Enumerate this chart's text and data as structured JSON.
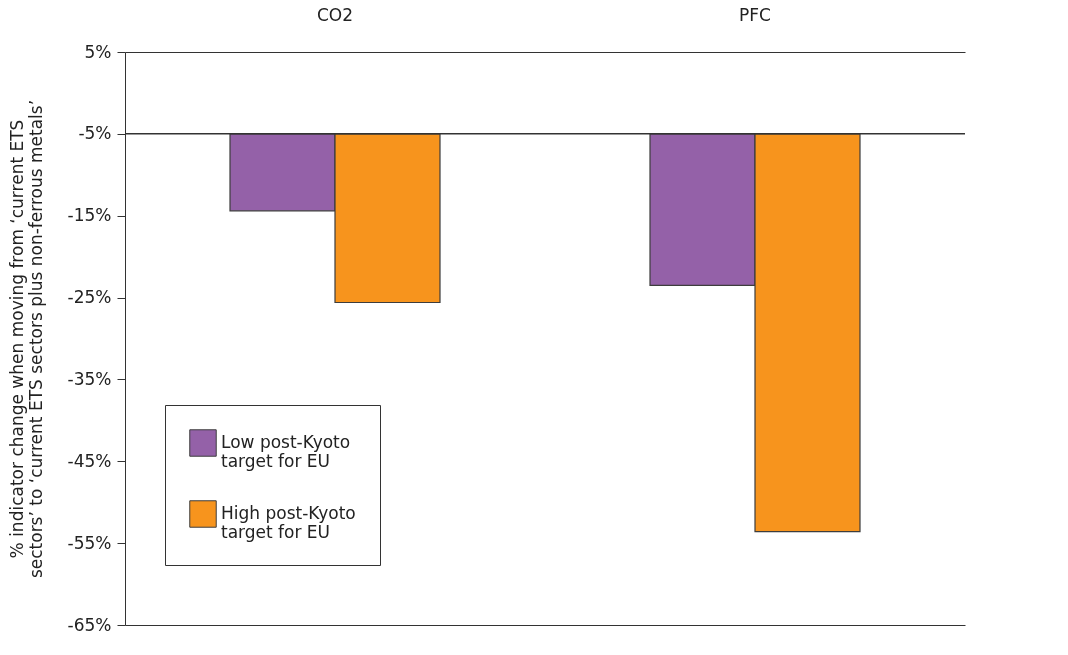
{
  "chart_data": {
    "type": "bar",
    "ylabel": "% indicator change when moving from ‘current ETS sectors’ to ‘current ETS sectors plus non-ferrous metals’",
    "categories": [
      "CO2",
      "PFC"
    ],
    "series": [
      {
        "name": "Low post-Kyoto target for EU",
        "color": "#9461a8",
        "base": [
          -5,
          -5
        ],
        "values": [
          -9.4,
          -18.5
        ]
      },
      {
        "name": "High post-Kyoto target for EU",
        "color": "#f7941d",
        "base": [
          -5,
          -5
        ],
        "values": [
          -20.6,
          -48.6
        ]
      }
    ],
    "ylim": [
      -65,
      5
    ],
    "yticks": [
      {
        "value": 5,
        "label": "5%"
      },
      {
        "value": -5,
        "label": "-5%"
      },
      {
        "value": -15,
        "label": "-15%"
      },
      {
        "value": -25,
        "label": "-25%"
      },
      {
        "value": -35,
        "label": "-35%"
      },
      {
        "value": -45,
        "label": "-45%"
      },
      {
        "value": -55,
        "label": "-55%"
      },
      {
        "value": -65,
        "label": "-65%"
      }
    ],
    "ref_lines": [
      {
        "axis": "y",
        "value": -5,
        "color": "#333333"
      }
    ],
    "grid": false,
    "legend": "bottom left"
  }
}
